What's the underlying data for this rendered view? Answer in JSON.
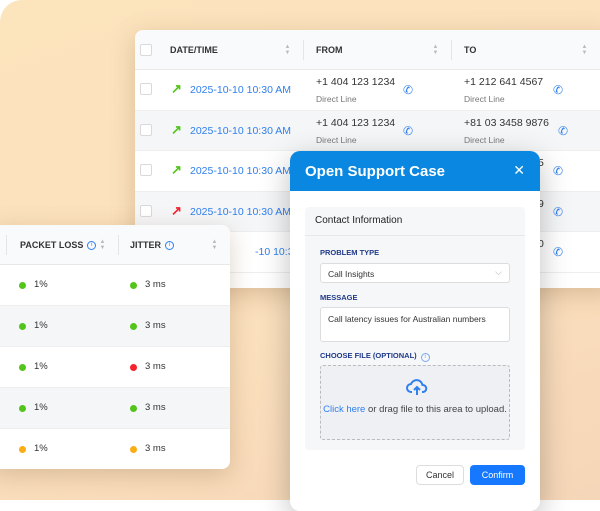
{
  "calls": {
    "headers": {
      "datetime": "DATE/TIME",
      "from": "FROM",
      "to": "TO"
    },
    "rows": [
      {
        "direction": "outgoing",
        "arrow_color": "#52c41a",
        "datetime": "2025-10-10 10:30 AM",
        "from": "+1 404 123 1234",
        "from_sub": "Direct Line",
        "to": "+1 212 641 4567",
        "to_sub": "Direct Line"
      },
      {
        "direction": "outgoing",
        "arrow_color": "#52c41a",
        "datetime": "2025-10-10 10:30 AM",
        "from": "+1 404 123 1234",
        "from_sub": "Direct Line",
        "to": "+81 03 3458 9876",
        "to_sub": "Direct Line"
      },
      {
        "direction": "outgoing",
        "arrow_color": "#52c41a",
        "datetime": "2025-10-10 10:30 AM",
        "to": "5"
      },
      {
        "direction": "outgoing",
        "arrow_color": "#f5222d",
        "datetime": "2025-10-10 10:30 AM",
        "to": "9"
      },
      {
        "datetime": "-10 10:30 AM",
        "to": "0"
      }
    ]
  },
  "metrics": {
    "headers": {
      "packet_loss": "PACKET LOSS",
      "jitter": "JITTER"
    },
    "rows": [
      {
        "packet_loss": "1%",
        "pl_color": "#52c41a",
        "jitter": "3 ms",
        "j_color": "#52c41a"
      },
      {
        "packet_loss": "1%",
        "pl_color": "#52c41a",
        "jitter": "3 ms",
        "j_color": "#52c41a"
      },
      {
        "packet_loss": "1%",
        "pl_color": "#52c41a",
        "jitter": "3 ms",
        "j_color": "#f5222d"
      },
      {
        "packet_loss": "1%",
        "pl_color": "#52c41a",
        "jitter": "3 ms",
        "j_color": "#52c41a"
      },
      {
        "packet_loss": "1%",
        "pl_color": "#faad14",
        "jitter": "3 ms",
        "j_color": "#faad14"
      }
    ]
  },
  "modal": {
    "title": "Open Support Case",
    "section_title": "Contact Information",
    "problem_type_label": "PROBLEM TYPE",
    "problem_type_value": "Call Insights",
    "message_label": "MESSAGE",
    "message_value": "Call latency issues for Australian numbers",
    "file_label": "CHOOSE FILE (OPTIONAL)",
    "upload_link": "Click here",
    "upload_text": " or drag file to this area to upload.",
    "cancel": "Cancel",
    "confirm": "Confirm",
    "accent": "#0a87e0"
  }
}
